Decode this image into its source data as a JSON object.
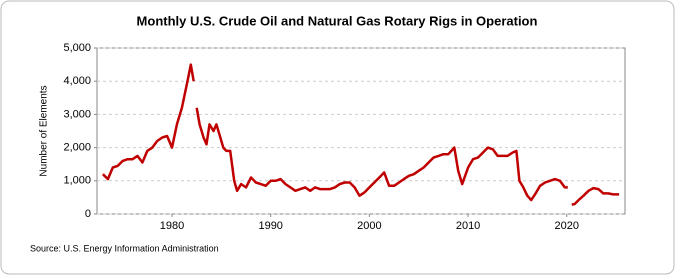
{
  "chart_data": {
    "type": "line",
    "title": "Monthly U.S. Crude Oil and Natural Gas Rotary Rigs in Operation",
    "y_label": "Number of Elements",
    "source": "Source: U.S. Energy Information Administration",
    "xlim": [
      1972.4,
      2025.9
    ],
    "xticks": [
      1980,
      1990,
      2000,
      2010,
      2020
    ],
    "ylim": [
      0,
      5000
    ],
    "yticks": [
      0,
      {
        "value": 1000,
        "label": "1,000"
      },
      {
        "value": 2000,
        "label": "2,000"
      },
      {
        "value": 3000,
        "label": "3,000"
      },
      {
        "value": 4000,
        "label": "4,000"
      },
      {
        "value": 5000,
        "label": "5,000"
      }
    ],
    "grid": true,
    "series": [
      {
        "color": "#c00000",
        "x": [
          1973.0,
          1973.5,
          1974.0,
          1974.5,
          1975.0,
          1975.5,
          1976.0,
          1976.5,
          1977.0,
          1977.5,
          1978.0,
          1978.5,
          1979.0,
          1979.5,
          1980.0,
          1980.5,
          1981.0,
          1981.5,
          1981.9,
          1982.2,
          1982.35,
          1982.5,
          1982.8,
          1983.2,
          1983.5,
          1983.8,
          1984.2,
          1984.5,
          1984.8,
          1985.2,
          1985.5,
          1985.9,
          1986.3,
          1986.6,
          1987.0,
          1987.5,
          1988.0,
          1988.5,
          1989.0,
          1989.5,
          1990.0,
          1990.5,
          1991.0,
          1991.5,
          1992.0,
          1992.5,
          1993.0,
          1993.5,
          1994.0,
          1994.5,
          1995.0,
          1995.5,
          1996.0,
          1996.5,
          1997.0,
          1997.5,
          1998.0,
          1998.5,
          1999.0,
          1999.5,
          2000.0,
          2000.5,
          2001.0,
          2001.5,
          2002.0,
          2002.5,
          2003.0,
          2003.5,
          2004.0,
          2004.5,
          2005.0,
          2005.5,
          2006.0,
          2006.5,
          2007.0,
          2007.5,
          2008.0,
          2008.6,
          2009.0,
          2009.4,
          2010.0,
          2010.5,
          2011.0,
          2011.5,
          2012.0,
          2012.5,
          2013.0,
          2013.5,
          2014.0,
          2014.5,
          2014.9,
          2015.2,
          2015.6,
          2016.0,
          2016.4,
          2016.8,
          2017.3,
          2017.8,
          2018.3,
          2018.8,
          2019.3,
          2019.8,
          2020.1,
          2020.3,
          2020.5,
          2020.8,
          2021.2,
          2021.7,
          2022.2,
          2022.7,
          2023.2,
          2023.7,
          2024.2,
          2024.7,
          2025.3
        ],
        "values": [
          1200,
          1050,
          1400,
          1450,
          1600,
          1650,
          1650,
          1750,
          1550,
          1900,
          2000,
          2200,
          2300,
          2350,
          2000,
          2700,
          3200,
          3900,
          4500,
          4000,
          null,
          3200,
          2700,
          2300,
          2100,
          2700,
          2500,
          2700,
          2400,
          2000,
          1900,
          1900,
          1000,
          700,
          900,
          800,
          1100,
          950,
          900,
          850,
          1000,
          1000,
          1050,
          900,
          800,
          700,
          750,
          800,
          700,
          800,
          750,
          750,
          750,
          800,
          900,
          950,
          950,
          800,
          550,
          650,
          800,
          950,
          1100,
          1250,
          850,
          850,
          950,
          1050,
          1150,
          1200,
          1300,
          1400,
          1550,
          1700,
          1750,
          1800,
          1800,
          2000,
          1300,
          900,
          1400,
          1650,
          1700,
          1850,
          2000,
          1950,
          1750,
          1750,
          1750,
          1850,
          1900,
          1000,
          800,
          550,
          420,
          600,
          850,
          950,
          1000,
          1050,
          1000,
          800,
          800,
          null,
          280,
          300,
          420,
          550,
          700,
          780,
          750,
          620,
          620,
          590,
          590
        ]
      }
    ]
  }
}
